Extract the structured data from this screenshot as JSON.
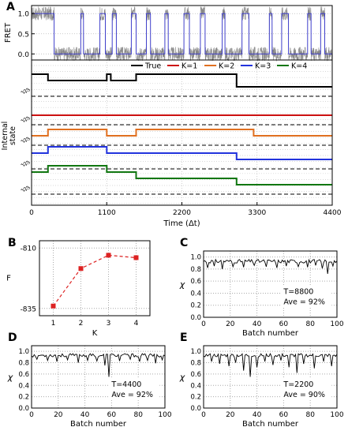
{
  "chart_data": [
    {
      "panel": "A",
      "type": "line",
      "subplot": "fret",
      "ylabel": "FRET",
      "yticks": [
        "0.0",
        "0.5",
        "1.0"
      ],
      "ylim": [
        -0.15,
        1.2
      ],
      "xlim": [
        0,
        4400
      ],
      "series": [
        {
          "color": "#888888",
          "style": "noisy raw trace",
          "levels": [
            0.0,
            1.0
          ]
        },
        {
          "color": "#3333cc",
          "style": "idealized trace",
          "levels": [
            0.0,
            1.0
          ]
        }
      ],
      "high_segments": [
        [
          0,
          330
        ],
        [
          720,
          760
        ],
        [
          1000,
          1080
        ],
        [
          1180,
          1240
        ],
        [
          1460,
          1530
        ],
        [
          1680,
          1740
        ],
        [
          1950,
          2000
        ],
        [
          2230,
          2310
        ],
        [
          2470,
          2540
        ],
        [
          2790,
          2830
        ],
        [
          3080,
          3180
        ],
        [
          3480,
          3520
        ],
        [
          3660,
          3760
        ],
        [
          4040,
          4090
        ],
        [
          4230,
          4290
        ]
      ],
      "low_segments": [
        [
          330,
          720
        ],
        [
          760,
          1000
        ],
        [
          1080,
          1180
        ],
        [
          1240,
          1460
        ],
        [
          1530,
          1680
        ],
        [
          1740,
          1950
        ],
        [
          2000,
          2230
        ],
        [
          2310,
          2470
        ],
        [
          2540,
          2790
        ],
        [
          2830,
          3080
        ],
        [
          3180,
          3480
        ],
        [
          3520,
          3660
        ],
        [
          3760,
          4040
        ],
        [
          4090,
          4230
        ],
        [
          4290,
          4400
        ]
      ]
    },
    {
      "panel": "A",
      "type": "line",
      "subplot": "internal-state",
      "ylabel": "Internal state",
      "xlabel": "Time (Δt)",
      "xticks": [
        0,
        1100,
        2200,
        3300,
        4400
      ],
      "xlim": [
        0,
        4400
      ],
      "state_tick_labels": [
        "1",
        "2",
        "3"
      ],
      "legend": {
        "placement": "top",
        "entries": [
          "True",
          "K=1",
          "K=2",
          "K=3",
          "K=4"
        ]
      },
      "series": [
        {
          "name": "True",
          "color": "#000000",
          "levels": 3,
          "steps": [
            [
              0,
              3
            ],
            [
              240,
              2
            ],
            [
              1100,
              3
            ],
            [
              1160,
              2
            ],
            [
              1530,
              3
            ],
            [
              3000,
              1
            ]
          ]
        },
        {
          "name": "K=1",
          "color": "#cc1111",
          "levels": 1,
          "steps": [
            [
              0,
              1
            ]
          ]
        },
        {
          "name": "K=2",
          "color": "#e07020",
          "levels": 2,
          "steps": [
            [
              0,
              1
            ],
            [
              240,
              2
            ],
            [
              1100,
              1
            ],
            [
              1530,
              2
            ],
            [
              3250,
              1
            ]
          ]
        },
        {
          "name": "K=3",
          "color": "#2233dd",
          "levels": 3,
          "steps": [
            [
              0,
              2
            ],
            [
              240,
              3
            ],
            [
              1100,
              2
            ],
            [
              1530,
              2
            ],
            [
              3000,
              1
            ]
          ]
        },
        {
          "name": "K=4",
          "color": "#117711",
          "levels": 4,
          "steps": [
            [
              0,
              3
            ],
            [
              240,
              4
            ],
            [
              1100,
              3
            ],
            [
              1530,
              2
            ],
            [
              3000,
              1
            ]
          ]
        }
      ]
    },
    {
      "panel": "B",
      "type": "line",
      "xlabel": "K",
      "ylabel": "F",
      "x": [
        1,
        2,
        3,
        4
      ],
      "values": [
        -834,
        -818.5,
        -813,
        -814
      ],
      "yticks": [
        -835,
        -810
      ],
      "xlim": [
        0.5,
        4.5
      ],
      "ylim": [
        -838,
        -807
      ],
      "marker_color": "#dd2222",
      "grid": true
    },
    {
      "panel": "C",
      "type": "line",
      "xlabel": "Batch number",
      "ylabel": "χ",
      "xticks": [
        0,
        20,
        40,
        60,
        80,
        100
      ],
      "yticks": [
        "0.0",
        "0.2",
        "0.4",
        "0.6",
        "0.8",
        "1.0"
      ],
      "xlim": [
        0,
        100
      ],
      "ylim": [
        0,
        1.1
      ],
      "grid": true,
      "annotation": [
        "T=8800",
        "Ave = 92%"
      ],
      "dips": [
        [
          3,
          0.82
        ],
        [
          8,
          0.85
        ],
        [
          14,
          0.8
        ],
        [
          22,
          0.84
        ],
        [
          30,
          0.83
        ],
        [
          38,
          0.86
        ],
        [
          47,
          0.84
        ],
        [
          55,
          0.82
        ],
        [
          62,
          0.85
        ],
        [
          71,
          0.84
        ],
        [
          78,
          0.83
        ],
        [
          84,
          0.86
        ],
        [
          89,
          0.81
        ],
        [
          93,
          0.72
        ],
        [
          97,
          0.85
        ]
      ]
    },
    {
      "panel": "D",
      "type": "line",
      "xlabel": "Batch number",
      "ylabel": "χ",
      "xticks": [
        0,
        20,
        40,
        60,
        80,
        100
      ],
      "yticks": [
        "0.0",
        "0.2",
        "0.4",
        "0.6",
        "0.8",
        "1.0"
      ],
      "xlim": [
        0,
        100
      ],
      "ylim": [
        0,
        1.1
      ],
      "grid": true,
      "annotation": [
        "T=4400",
        "Ave = 92%"
      ],
      "dips": [
        [
          4,
          0.86
        ],
        [
          12,
          0.84
        ],
        [
          19,
          0.82
        ],
        [
          27,
          0.85
        ],
        [
          35,
          0.8
        ],
        [
          42,
          0.84
        ],
        [
          49,
          0.83
        ],
        [
          55,
          0.75
        ],
        [
          58,
          0.55
        ],
        [
          66,
          0.83
        ],
        [
          74,
          0.86
        ],
        [
          81,
          0.82
        ],
        [
          87,
          0.84
        ],
        [
          93,
          0.79
        ],
        [
          98,
          0.85
        ]
      ]
    },
    {
      "panel": "E",
      "type": "line",
      "xlabel": "Batch number",
      "ylabel": "χ",
      "xticks": [
        0,
        20,
        40,
        60,
        80,
        100
      ],
      "yticks": [
        "0.0",
        "0.2",
        "0.4",
        "0.6",
        "0.8",
        "1.0"
      ],
      "xlim": [
        0,
        100
      ],
      "ylim": [
        0,
        1.1
      ],
      "grid": true,
      "annotation": [
        "T=2200",
        "Ave = 90%"
      ],
      "dips": [
        [
          6,
          0.82
        ],
        [
          12,
          0.78
        ],
        [
          19,
          0.74
        ],
        [
          24,
          0.8
        ],
        [
          30,
          0.66
        ],
        [
          35,
          0.55
        ],
        [
          40,
          0.72
        ],
        [
          46,
          0.82
        ],
        [
          52,
          0.76
        ],
        [
          58,
          0.84
        ],
        [
          64,
          0.72
        ],
        [
          70,
          0.62
        ],
        [
          75,
          0.78
        ],
        [
          83,
          0.7
        ],
        [
          90,
          0.82
        ],
        [
          96,
          0.74
        ]
      ]
    }
  ],
  "panels": {
    "A": "A",
    "B": "B",
    "C": "C",
    "D": "D",
    "E": "E"
  }
}
